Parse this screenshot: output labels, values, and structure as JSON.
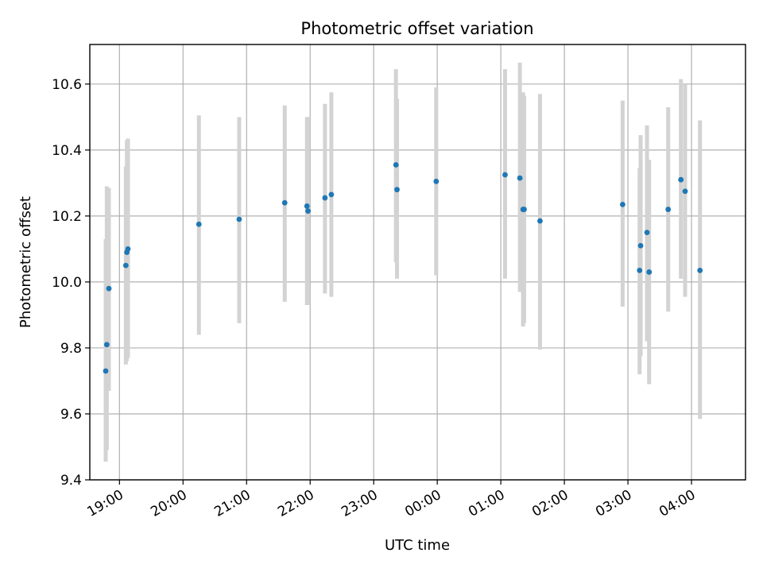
{
  "chart_data": {
    "type": "scatter",
    "title": "Photometric offset variation",
    "xlabel": "UTC time",
    "ylabel": "Photometric offset",
    "x_ticks": [
      "19:00",
      "20:00",
      "21:00",
      "22:00",
      "23:00",
      "00:00",
      "01:00",
      "02:00",
      "03:00",
      "04:00"
    ],
    "x_start": "18:32",
    "x_end": "04:51",
    "ylim": [
      9.4,
      10.72
    ],
    "y_ticks": [
      "9.4",
      "9.6",
      "9.8",
      "10.0",
      "10.2",
      "10.4",
      "10.6"
    ],
    "grid": true,
    "colors": {
      "point": "#1f77b4",
      "errorbar": "#d3d3d3"
    },
    "points": [
      {
        "x": "18:47",
        "y": 9.73,
        "ylo": 9.455,
        "yhi": 10.13
      },
      {
        "x": "18:48",
        "y": 9.81,
        "ylo": 9.49,
        "yhi": 10.29
      },
      {
        "x": "18:50",
        "y": 9.98,
        "ylo": 9.67,
        "yhi": 10.285
      },
      {
        "x": "19:06",
        "y": 10.05,
        "ylo": 9.75,
        "yhi": 10.35
      },
      {
        "x": "19:07",
        "y": 10.09,
        "ylo": 9.76,
        "yhi": 10.43
      },
      {
        "x": "19:08",
        "y": 10.1,
        "ylo": 9.77,
        "yhi": 10.435
      },
      {
        "x": "20:15",
        "y": 10.175,
        "ylo": 9.84,
        "yhi": 10.505
      },
      {
        "x": "20:53",
        "y": 10.19,
        "ylo": 9.875,
        "yhi": 10.5
      },
      {
        "x": "21:36",
        "y": 10.24,
        "ylo": 9.94,
        "yhi": 10.535
      },
      {
        "x": "21:57",
        "y": 10.23,
        "ylo": 9.93,
        "yhi": 10.5
      },
      {
        "x": "21:58",
        "y": 10.215,
        "ylo": 9.93,
        "yhi": 10.5
      },
      {
        "x": "22:14",
        "y": 10.255,
        "ylo": 9.965,
        "yhi": 10.54
      },
      {
        "x": "22:20",
        "y": 10.265,
        "ylo": 9.955,
        "yhi": 10.575
      },
      {
        "x": "23:21",
        "y": 10.355,
        "ylo": 10.06,
        "yhi": 10.645
      },
      {
        "x": "23:22",
        "y": 10.28,
        "ylo": 10.01,
        "yhi": 10.555
      },
      {
        "x": "23:59",
        "y": 10.305,
        "ylo": 10.02,
        "yhi": 10.59
      },
      {
        "x": "01:04",
        "y": 10.325,
        "ylo": 10.01,
        "yhi": 10.645
      },
      {
        "x": "01:18",
        "y": 10.315,
        "ylo": 9.97,
        "yhi": 10.665
      },
      {
        "x": "01:21",
        "y": 10.22,
        "ylo": 9.865,
        "yhi": 10.575
      },
      {
        "x": "01:22",
        "y": 10.22,
        "ylo": 9.875,
        "yhi": 10.565
      },
      {
        "x": "01:37",
        "y": 10.185,
        "ylo": 9.795,
        "yhi": 10.57
      },
      {
        "x": "02:55",
        "y": 10.235,
        "ylo": 9.925,
        "yhi": 10.55
      },
      {
        "x": "03:11",
        "y": 10.035,
        "ylo": 9.72,
        "yhi": 10.345
      },
      {
        "x": "03:12",
        "y": 10.11,
        "ylo": 9.775,
        "yhi": 10.445
      },
      {
        "x": "03:18",
        "y": 10.15,
        "ylo": 9.82,
        "yhi": 10.475
      },
      {
        "x": "03:20",
        "y": 10.03,
        "ylo": 9.69,
        "yhi": 10.37
      },
      {
        "x": "03:38",
        "y": 10.22,
        "ylo": 9.91,
        "yhi": 10.53
      },
      {
        "x": "03:50",
        "y": 10.31,
        "ylo": 10.01,
        "yhi": 10.615
      },
      {
        "x": "03:54",
        "y": 10.275,
        "ylo": 9.955,
        "yhi": 10.6
      },
      {
        "x": "04:08",
        "y": 10.035,
        "ylo": 9.585,
        "yhi": 10.49
      }
    ]
  }
}
